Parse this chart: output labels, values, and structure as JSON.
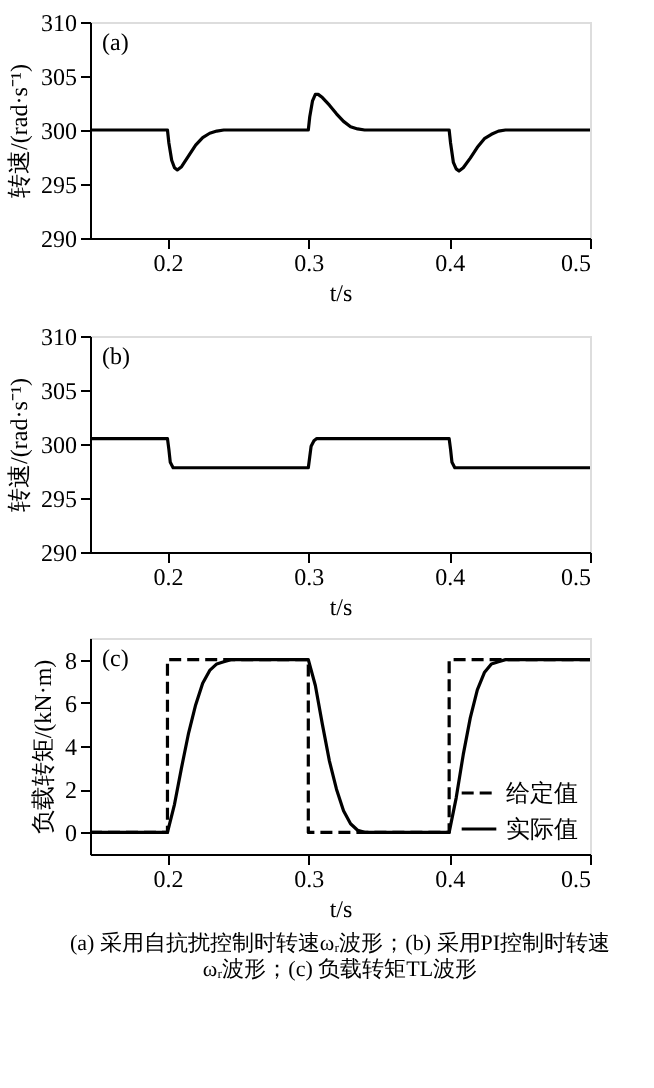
{
  "chart_data": [
    {
      "type": "line",
      "annotations": [
        "(a)"
      ],
      "xlabel": "t/s",
      "ylabel": "转速/(rad·s⁻¹)",
      "xlim": [
        0.145,
        0.5
      ],
      "xticks": [
        0.2,
        0.3,
        0.4,
        0.5
      ],
      "ylim": [
        290,
        310
      ],
      "yticks": [
        290,
        295,
        300,
        305,
        310
      ],
      "marker": "none",
      "legend": false,
      "series": [
        {
          "color": "#000000",
          "line_style": "solid",
          "x": [
            0.145,
            0.2,
            0.201,
            0.203,
            0.205,
            0.207,
            0.21,
            0.215,
            0.22,
            0.225,
            0.23,
            0.235,
            0.24,
            0.25,
            0.3,
            0.301,
            0.303,
            0.305,
            0.307,
            0.31,
            0.315,
            0.32,
            0.325,
            0.33,
            0.335,
            0.34,
            0.4,
            0.401,
            0.403,
            0.405,
            0.407,
            0.41,
            0.415,
            0.42,
            0.425,
            0.43,
            0.435,
            0.44,
            0.45,
            0.5
          ],
          "values": [
            300,
            300,
            298.8,
            297.2,
            296.5,
            296.3,
            296.6,
            297.6,
            298.6,
            299.3,
            299.7,
            299.9,
            300,
            300,
            300,
            301.2,
            302.7,
            303.3,
            303.3,
            303,
            302.3,
            301.5,
            300.8,
            300.3,
            300.1,
            300,
            300,
            298.8,
            297,
            296.4,
            296.2,
            296.5,
            297.4,
            298.4,
            299.2,
            299.6,
            299.9,
            300,
            300,
            300
          ]
        }
      ]
    },
    {
      "type": "line",
      "annotations": [
        "(b)"
      ],
      "xlabel": "t/s",
      "ylabel": "转速/(rad·s⁻¹)",
      "xlim": [
        0.145,
        0.5
      ],
      "xticks": [
        0.2,
        0.3,
        0.4,
        0.5
      ],
      "ylim": [
        290,
        310
      ],
      "yticks": [
        290,
        295,
        300,
        305,
        310
      ],
      "marker": "none",
      "legend": false,
      "series": [
        {
          "color": "#000000",
          "line_style": "solid",
          "x": [
            0.145,
            0.2,
            0.201,
            0.202,
            0.204,
            0.3,
            0.301,
            0.302,
            0.304,
            0.306,
            0.4,
            0.401,
            0.402,
            0.404,
            0.5
          ],
          "values": [
            300.5,
            300.5,
            299.5,
            298.3,
            297.8,
            297.8,
            298.8,
            299.8,
            300.3,
            300.5,
            300.5,
            299.5,
            298.3,
            297.8,
            297.8
          ]
        }
      ]
    },
    {
      "type": "line",
      "annotations": [
        "(c)",
        "(a) 采用自抗扰控制时转速ωᵣ波形；(b) 采用PI控制时转速",
        "ωᵣ波形；(c) 负载转矩TL波形"
      ],
      "xlabel": "t/s",
      "ylabel": "负载转矩/(kN·m)",
      "xlim": [
        0.145,
        0.5
      ],
      "xticks": [
        0.2,
        0.3,
        0.4,
        0.5
      ],
      "ylim": [
        -1,
        9
      ],
      "yticks": [
        0,
        2,
        4,
        6,
        8
      ],
      "marker": "none",
      "legend": "bottom right",
      "series": [
        {
          "name": "给定值",
          "color": "#000000",
          "line_style": "dashed",
          "x": [
            0.145,
            0.2,
            0.2,
            0.3,
            0.3,
            0.4,
            0.4,
            0.5
          ],
          "values": [
            0,
            0,
            8,
            8,
            0,
            0,
            8,
            8
          ]
        },
        {
          "name": "实际值",
          "color": "#000000",
          "line_style": "solid",
          "x": [
            0.145,
            0.2,
            0.205,
            0.21,
            0.215,
            0.22,
            0.225,
            0.23,
            0.235,
            0.24,
            0.245,
            0.25,
            0.3,
            0.305,
            0.31,
            0.315,
            0.32,
            0.325,
            0.33,
            0.335,
            0.34,
            0.4,
            0.405,
            0.41,
            0.415,
            0.42,
            0.425,
            0.43,
            0.435,
            0.44,
            0.5
          ],
          "values": [
            0,
            0,
            1.3,
            3,
            4.6,
            5.9,
            6.9,
            7.5,
            7.8,
            7.9,
            8,
            8,
            8,
            6.8,
            5,
            3.3,
            2,
            1,
            0.4,
            0.1,
            0,
            0,
            1.6,
            3.6,
            5.3,
            6.6,
            7.4,
            7.8,
            7.9,
            8,
            8
          ]
        }
      ]
    }
  ]
}
